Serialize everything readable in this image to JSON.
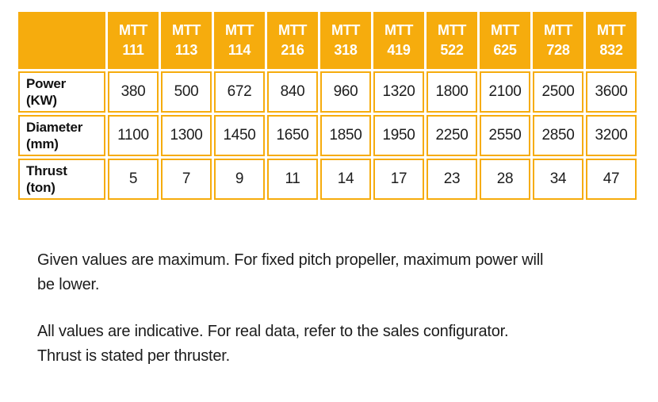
{
  "colors": {
    "orange": "#f6ac0d",
    "header_text": "#ffffff",
    "body_text": "#1b1b1b"
  },
  "table": {
    "corner_label": "",
    "columns": [
      {
        "brand": "MTT",
        "model": "111"
      },
      {
        "brand": "MTT",
        "model": "113"
      },
      {
        "brand": "MTT",
        "model": "114"
      },
      {
        "brand": "MTT",
        "model": "216"
      },
      {
        "brand": "MTT",
        "model": "318"
      },
      {
        "brand": "MTT",
        "model": "419"
      },
      {
        "brand": "MTT",
        "model": "522"
      },
      {
        "brand": "MTT",
        "model": "625"
      },
      {
        "brand": "MTT",
        "model": "728"
      },
      {
        "brand": "MTT",
        "model": "832"
      }
    ],
    "rows": [
      {
        "label_lines": [
          "Power",
          "(KW)"
        ],
        "values": [
          "380",
          "500",
          "672",
          "840",
          "960",
          "1320",
          "1800",
          "2100",
          "2500",
          "3600"
        ]
      },
      {
        "label_lines": [
          "Diameter",
          "(mm)"
        ],
        "values": [
          "1100",
          "1300",
          "1450",
          "1650",
          "1850",
          "1950",
          "2250",
          "2550",
          "2850",
          "3200"
        ]
      },
      {
        "label_lines": [
          "Thrust",
          "(ton)"
        ],
        "values": [
          "5",
          "7",
          "9",
          "11",
          "14",
          "17",
          "23",
          "28",
          "34",
          "47"
        ]
      }
    ]
  },
  "notes": [
    {
      "lines": [
        "Given values are maximum. For fixed pitch propeller, maximum power will",
        "be lower."
      ]
    },
    {
      "lines": [
        "All values are indicative. For real data, refer to the sales configurator.",
        "Thrust is stated per thruster."
      ]
    }
  ]
}
